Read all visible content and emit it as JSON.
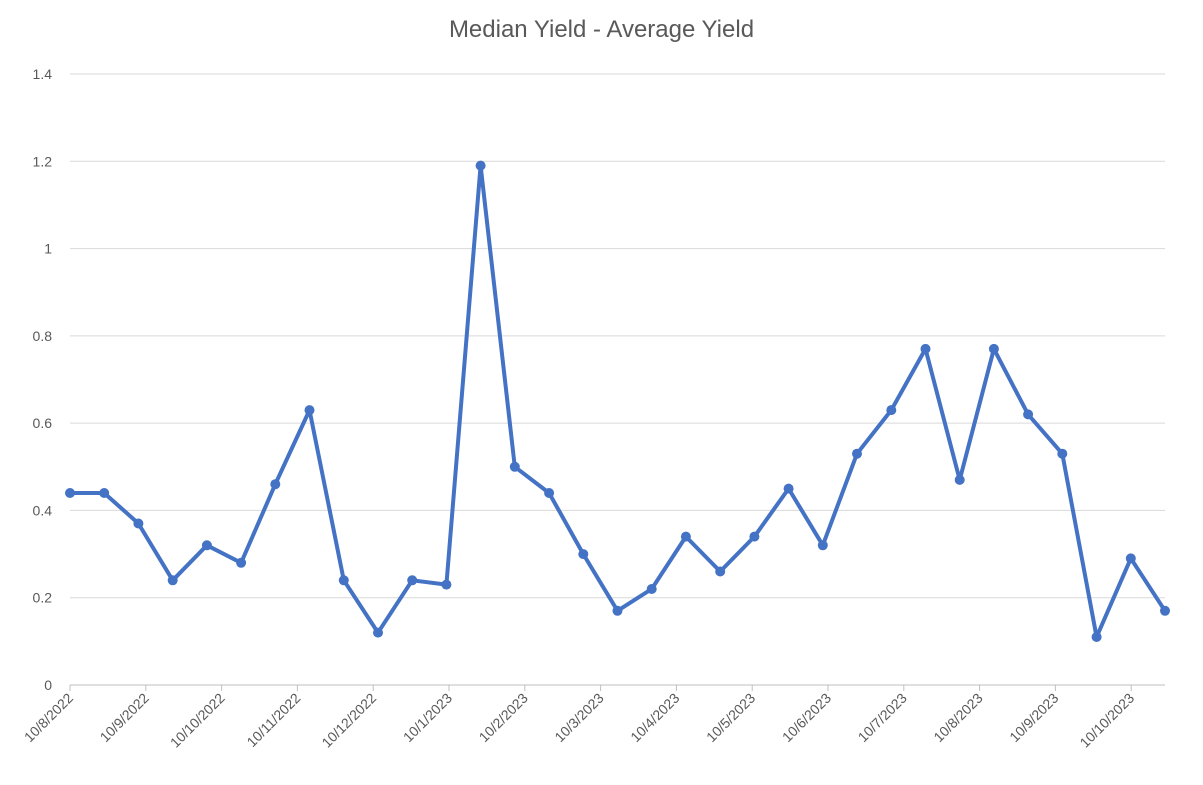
{
  "chart_data": {
    "type": "line",
    "title": "Median Yield - Average Yield",
    "xlabel": "",
    "ylabel": "",
    "ylim": [
      0,
      1.4
    ],
    "yticks": [
      "0",
      "0.2",
      "0.4",
      "0.6",
      "0.8",
      "1",
      "1.2",
      "1.4"
    ],
    "grid": true,
    "legend": "none",
    "x_tick_labels": [
      "10/8/2022",
      "10/9/2022",
      "10/10/2022",
      "10/11/2022",
      "10/12/2022",
      "10/1/2023",
      "10/2/2023",
      "10/3/2023",
      "10/4/2023",
      "10/5/2023",
      "10/6/2023",
      "10/7/2023",
      "10/8/2023",
      "10/9/2023",
      "10/10/2023"
    ],
    "x": [
      "2022-08-10",
      "2022-08-24",
      "2022-09-07",
      "2022-09-21",
      "2022-10-05",
      "2022-10-19",
      "2022-11-02",
      "2022-11-16",
      "2022-11-30",
      "2022-12-14",
      "2022-12-28",
      "2023-01-11",
      "2023-01-25",
      "2023-02-08",
      "2023-02-22",
      "2023-03-08",
      "2023-03-22",
      "2023-04-05",
      "2023-04-19",
      "2023-05-03",
      "2023-05-17",
      "2023-05-31",
      "2023-06-14",
      "2023-06-28",
      "2023-07-12",
      "2023-07-26",
      "2023-08-09",
      "2023-08-23",
      "2023-09-06",
      "2023-09-20",
      "2023-10-04",
      "2023-10-18",
      "2023-11-01"
    ],
    "series": [
      {
        "values": [
          0.44,
          0.44,
          0.37,
          0.24,
          0.32,
          0.28,
          0.46,
          0.63,
          0.24,
          0.12,
          0.24,
          0.23,
          1.19,
          0.5,
          0.44,
          0.3,
          0.17,
          0.22,
          0.34,
          0.26,
          0.34,
          0.45,
          0.32,
          0.53,
          0.63,
          0.77,
          0.47,
          0.77,
          0.62,
          0.53,
          0.11,
          0.29,
          0.17
        ],
        "color": "#4472C4"
      }
    ],
    "colors": {
      "line": "#4472C4",
      "grid": "#D9D9D9",
      "axis": "#BFBFBF",
      "text": "#595959"
    }
  }
}
